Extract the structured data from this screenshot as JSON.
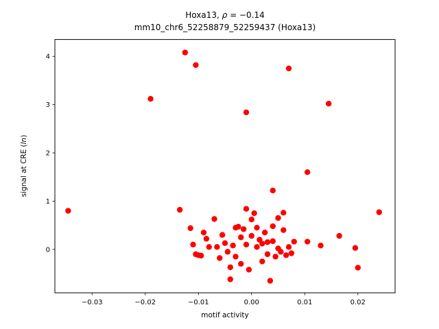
{
  "chart_data": {
    "type": "scatter",
    "title": {
      "prefix": "Hoxa13, ",
      "rho": "ρ",
      "suffix": " = −0.14"
    },
    "subtitle": "mm10_chr6_52258879_52259437 (Hoxa13)",
    "xlabel": "motif activity",
    "ylabel": {
      "prefix": "signal at CRE (",
      "italic": "ln",
      "suffix": ")"
    },
    "xlim": [
      -0.037,
      0.027
    ],
    "ylim": [
      -0.9,
      4.35
    ],
    "xtick_values": [
      -0.03,
      -0.02,
      -0.01,
      0.0,
      0.01,
      0.02
    ],
    "xtick_labels": [
      "−0.03",
      "−0.02",
      "−0.01",
      "0.00",
      "0.01",
      "0.02"
    ],
    "ytick_values": [
      0,
      1,
      2,
      3,
      4
    ],
    "ytick_labels": [
      "0",
      "1",
      "2",
      "3",
      "4"
    ],
    "marker_color": "#ff0000",
    "grid": "off",
    "legend": "none",
    "points": [
      [
        -0.0345,
        0.8
      ],
      [
        -0.019,
        3.12
      ],
      [
        -0.0125,
        4.08
      ],
      [
        -0.0105,
        3.82
      ],
      [
        -0.001,
        2.84
      ],
      [
        0.007,
        3.75
      ],
      [
        0.0145,
        3.02
      ],
      [
        0.0105,
        1.6
      ],
      [
        0.004,
        1.22
      ],
      [
        0.024,
        0.77
      ],
      [
        -0.0135,
        0.82
      ],
      [
        -0.0115,
        0.44
      ],
      [
        -0.011,
        0.1
      ],
      [
        -0.0105,
        -0.1
      ],
      [
        -0.01,
        -0.12
      ],
      [
        -0.0095,
        -0.13
      ],
      [
        -0.009,
        0.35
      ],
      [
        -0.0085,
        0.22
      ],
      [
        -0.008,
        0.05
      ],
      [
        -0.007,
        0.63
      ],
      [
        -0.0065,
        0.05
      ],
      [
        -0.006,
        -0.18
      ],
      [
        -0.0055,
        0.3
      ],
      [
        -0.005,
        0.13
      ],
      [
        -0.0045,
        -0.05
      ],
      [
        -0.004,
        -0.37
      ],
      [
        -0.004,
        -0.62
      ],
      [
        -0.0035,
        0.08
      ],
      [
        -0.003,
        0.45
      ],
      [
        -0.003,
        -0.15
      ],
      [
        -0.0025,
        0.47
      ],
      [
        -0.002,
        0.25
      ],
      [
        -0.002,
        -0.3
      ],
      [
        -0.0015,
        0.42
      ],
      [
        -0.001,
        0.84
      ],
      [
        -0.001,
        0.1
      ],
      [
        -0.0005,
        -0.42
      ],
      [
        0.0,
        0.62
      ],
      [
        0.0,
        0.28
      ],
      [
        0.0005,
        0.75
      ],
      [
        0.001,
        0.45
      ],
      [
        0.001,
        0.05
      ],
      [
        0.0015,
        0.2
      ],
      [
        0.002,
        0.12
      ],
      [
        0.002,
        -0.25
      ],
      [
        0.0025,
        0.35
      ],
      [
        0.003,
        0.15
      ],
      [
        0.003,
        -0.1
      ],
      [
        0.0035,
        -0.65
      ],
      [
        0.004,
        0.48
      ],
      [
        0.004,
        0.17
      ],
      [
        0.0045,
        -0.15
      ],
      [
        0.005,
        0.65
      ],
      [
        0.005,
        0.02
      ],
      [
        0.0055,
        -0.05
      ],
      [
        0.006,
        0.76
      ],
      [
        0.006,
        0.4
      ],
      [
        0.0065,
        -0.12
      ],
      [
        0.007,
        0.05
      ],
      [
        0.0075,
        -0.08
      ],
      [
        0.008,
        0.16
      ],
      [
        0.0105,
        0.16
      ],
      [
        0.013,
        0.08
      ],
      [
        0.0165,
        0.28
      ],
      [
        0.0195,
        0.03
      ],
      [
        0.02,
        -0.38
      ]
    ]
  }
}
